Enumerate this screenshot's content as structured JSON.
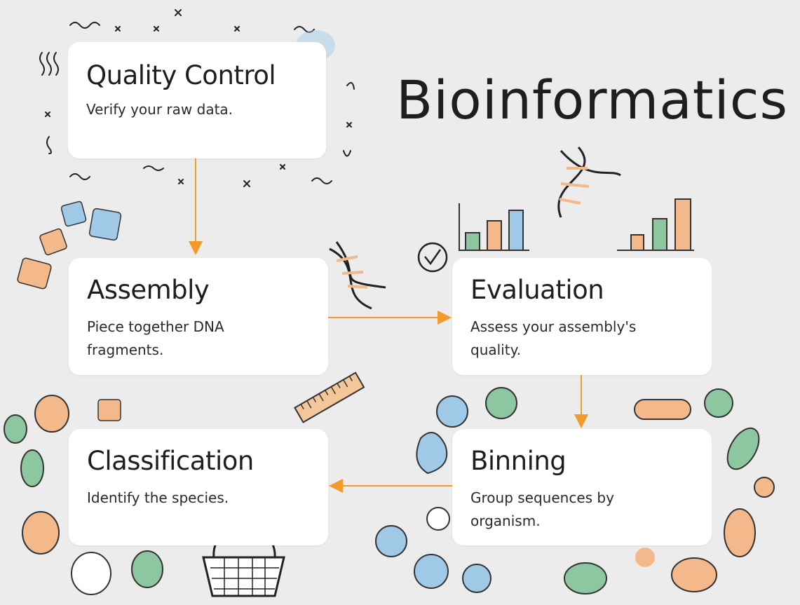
{
  "title": "Bioinformatics",
  "colors": {
    "background": "#ececec",
    "card": "#ffffff",
    "arrow": "#f39a2b",
    "accent_green": "#8cc7a0",
    "accent_blue": "#9fc9e6",
    "accent_orange": "#f4b98a"
  },
  "steps": [
    {
      "title": "Quality Control",
      "description": "Verify your raw data.",
      "icon": "magnifier-icon"
    },
    {
      "title": "Assembly",
      "description": "Piece together DNA fragments.",
      "icon": "puzzle-icon"
    },
    {
      "title": "Evaluation",
      "description": "Assess your assembly's quality.",
      "icon": "bar-chart-icon"
    },
    {
      "title": "Binning",
      "description": "Group sequences by organism.",
      "icon": "cell-icon"
    },
    {
      "title": "Classification",
      "description": "Identify the species.",
      "icon": "basket-icon"
    }
  ],
  "flow": [
    "Quality Control",
    "Assembly",
    "Evaluation",
    "Binning",
    "Classification"
  ]
}
